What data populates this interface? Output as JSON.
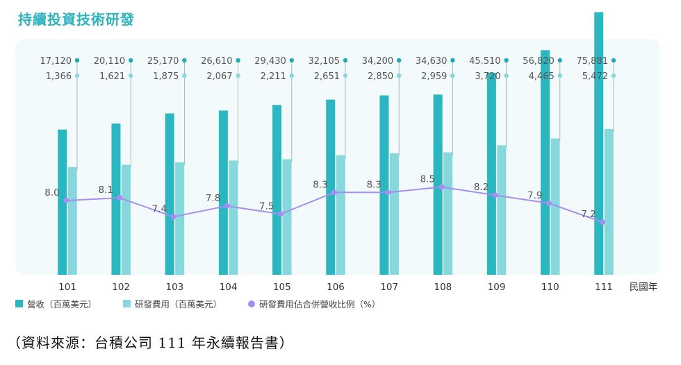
{
  "title": "持續投資技術研發",
  "source": "（資料來源：台積公司 111 年永續報告書）",
  "colors": {
    "revenue": "#2ab7c0",
    "rd": "#86d8dc",
    "ratio": "#a48ff0",
    "revenue_dot": "#22a9b7",
    "rd_dot": "#86d8dc"
  },
  "chart_data": {
    "type": "bar",
    "x_unit": "民國年",
    "categories": [
      "101",
      "102",
      "103",
      "104",
      "105",
      "106",
      "107",
      "108",
      "109",
      "110",
      "111"
    ],
    "series": [
      {
        "name": "營收（百萬美元）",
        "values": [
          17120,
          20110,
          25170,
          26610,
          29430,
          32105,
          34200,
          34630,
          45510,
          56820,
          75881
        ],
        "labels": [
          "17,120",
          "20,110",
          "25,170",
          "26,610",
          "29,430",
          "32,105",
          "34,200",
          "34,630",
          "45.510",
          "56,820",
          "75,881"
        ]
      },
      {
        "name": "研發費用（百萬美元）",
        "values": [
          1366,
          1621,
          1875,
          2067,
          2211,
          2651,
          2850,
          2959,
          3720,
          4465,
          5472
        ],
        "labels": [
          "1,366",
          "1,621",
          "1,875",
          "2,067",
          "2,211",
          "2,651",
          "2,850",
          "2,959",
          "3,720",
          "4,465",
          "5,472"
        ]
      },
      {
        "name": "研發費用佔合併營收比例（%）",
        "type": "line",
        "values": [
          8.0,
          8.1,
          7.4,
          7.8,
          7.5,
          8.3,
          8.3,
          8.5,
          8.2,
          7.9,
          7.2
        ],
        "labels": [
          "8.0",
          "8.1",
          "7.4",
          "7.8",
          "7.5",
          "8.3",
          "8.3",
          "8.5",
          "8.2",
          "7.9",
          "7.2"
        ]
      }
    ],
    "legend_position": "bottom"
  }
}
